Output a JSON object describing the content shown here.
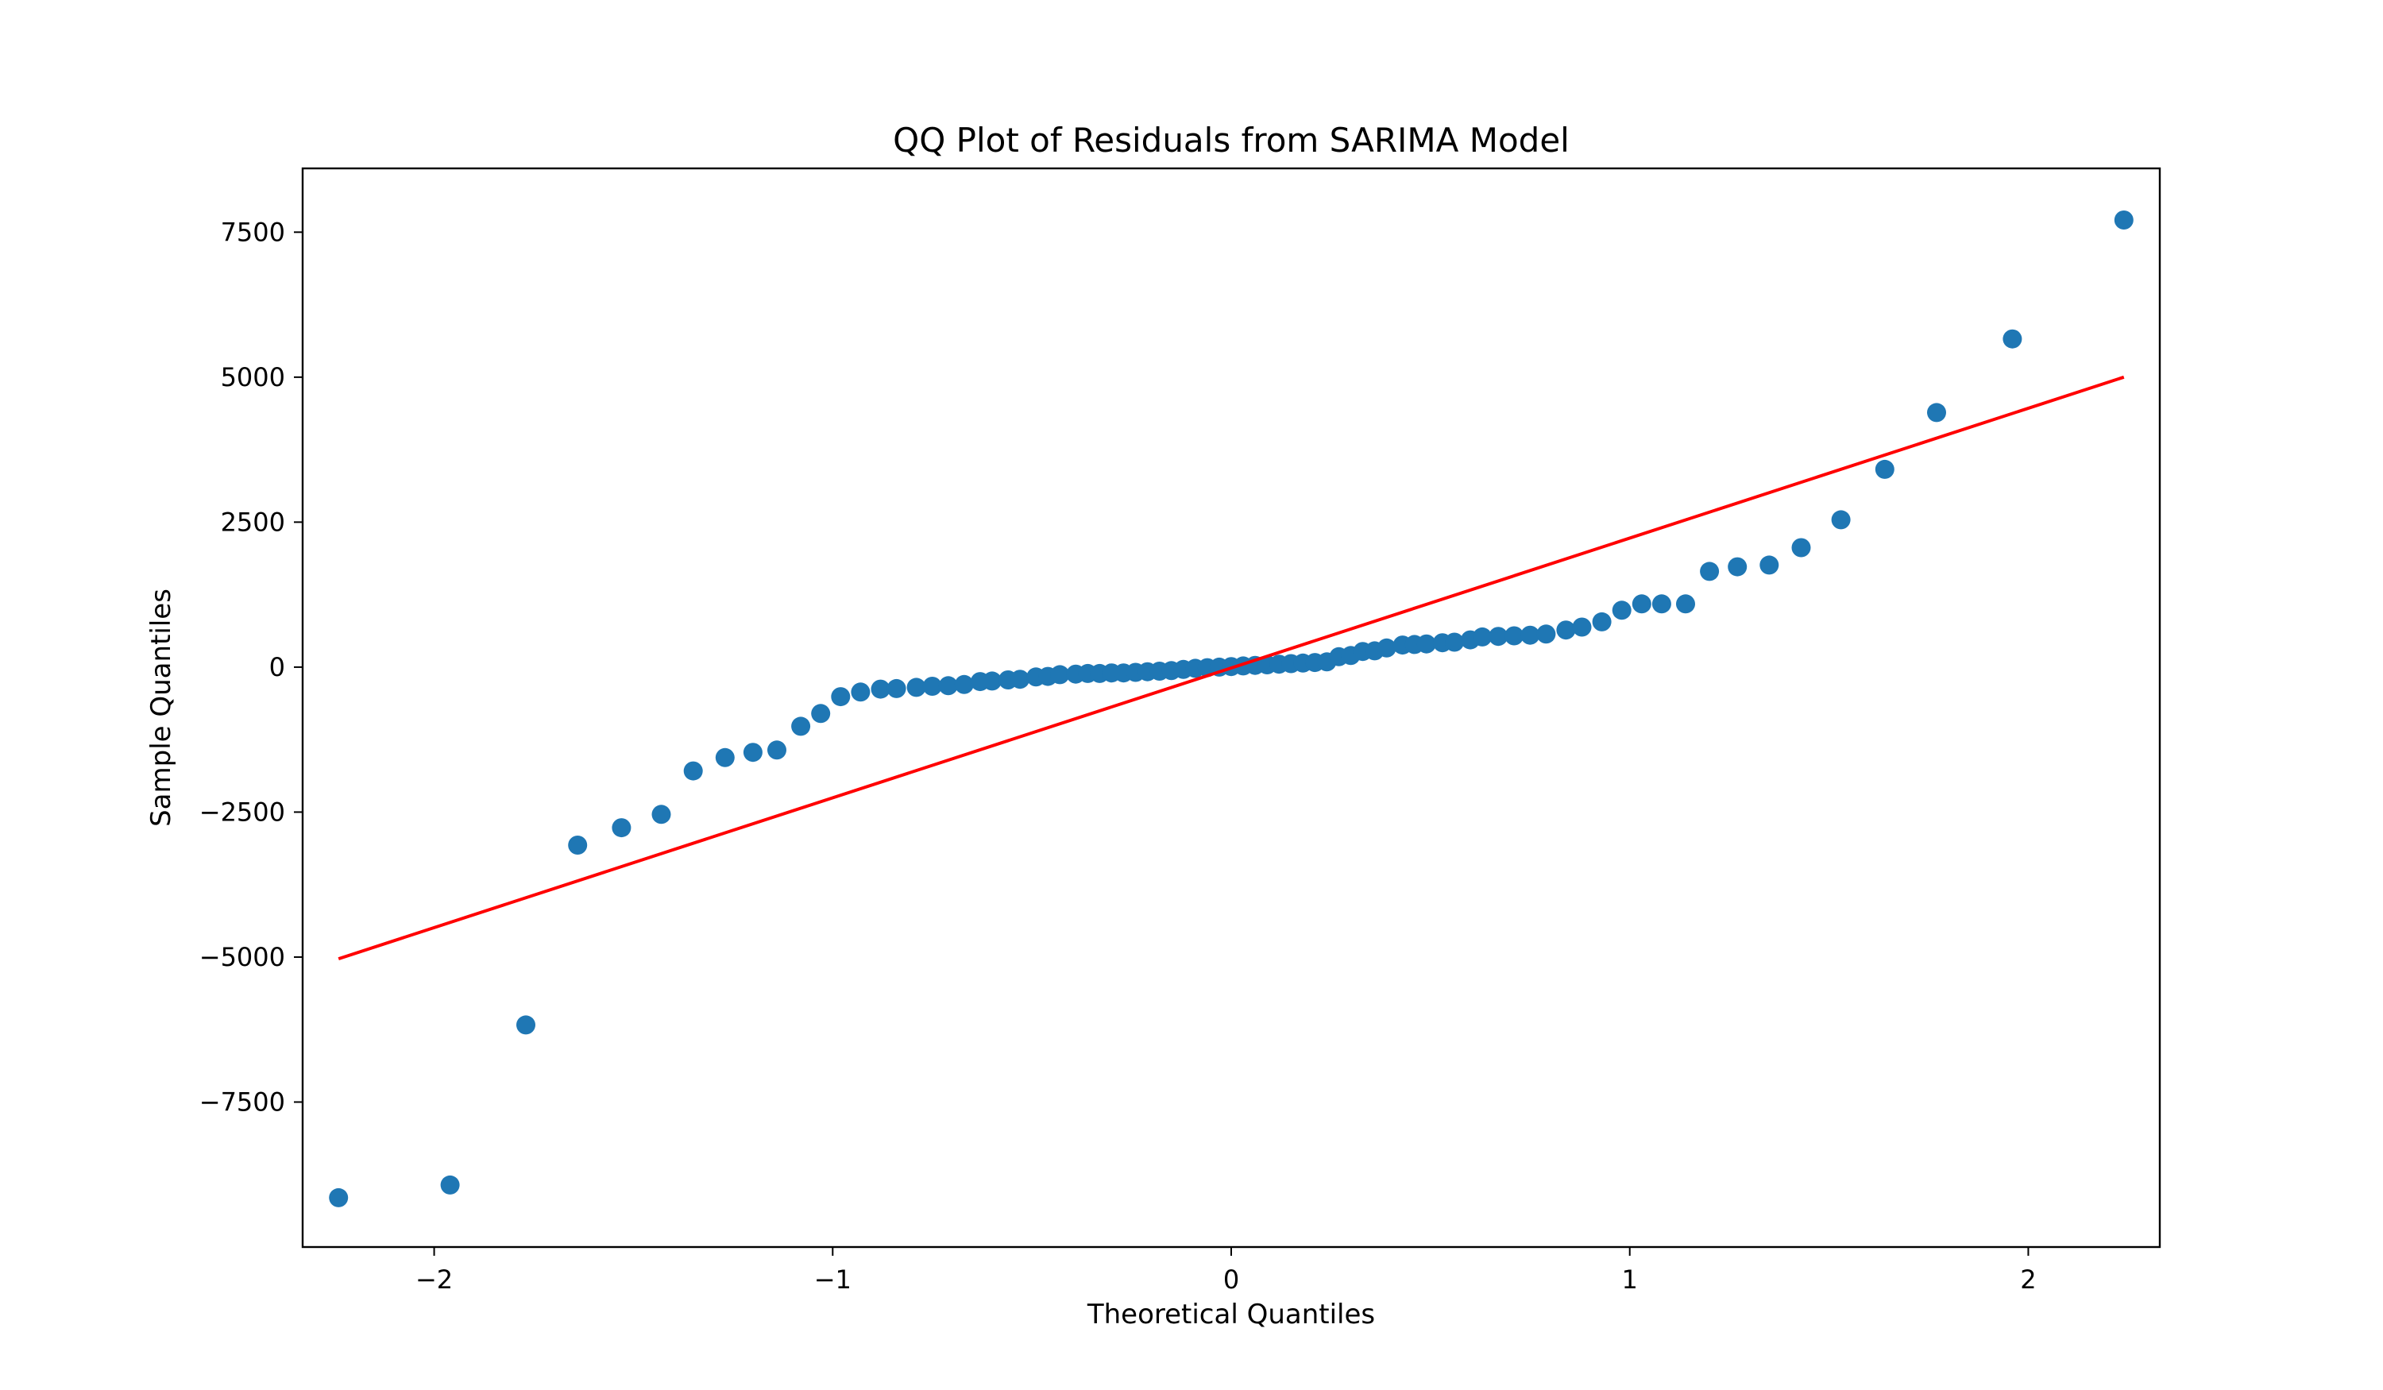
{
  "chart_data": {
    "type": "scatter",
    "title": "QQ Plot of Residuals from SARIMA Model",
    "xlabel": "Theoretical Quantiles",
    "ylabel": "Sample Quantiles",
    "xlim": [
      -2.33,
      2.33
    ],
    "ylim": [
      -10000,
      8600
    ],
    "xticks": [
      {
        "value": -2,
        "label": "−2"
      },
      {
        "value": -1,
        "label": "−1"
      },
      {
        "value": 0,
        "label": "0"
      },
      {
        "value": 1,
        "label": "1"
      },
      {
        "value": 2,
        "label": "2"
      }
    ],
    "yticks": [
      {
        "value": -7500,
        "label": "−7500"
      },
      {
        "value": -5000,
        "label": "−5000"
      },
      {
        "value": -2500,
        "label": "−2500"
      },
      {
        "value": 0,
        "label": "0"
      },
      {
        "value": 2500,
        "label": "2500"
      },
      {
        "value": 5000,
        "label": "5000"
      },
      {
        "value": 7500,
        "label": "7500"
      }
    ],
    "grid": false,
    "series": [
      {
        "kind": "points",
        "color": "#1f77b4",
        "x": [
          -2.24,
          -1.96,
          -1.77,
          -1.64,
          -1.53,
          -1.43,
          -1.35,
          -1.27,
          -1.2,
          -1.14,
          -1.08,
          -1.03,
          -0.98,
          -0.93,
          -0.88,
          -0.84,
          -0.79,
          -0.75,
          -0.71,
          -0.67,
          -0.63,
          -0.6,
          -0.56,
          -0.53,
          -0.49,
          -0.46,
          -0.43,
          -0.39,
          -0.36,
          -0.33,
          -0.3,
          -0.27,
          -0.24,
          -0.21,
          -0.18,
          -0.15,
          -0.12,
          -0.09,
          -0.06,
          -0.03,
          0.0,
          0.03,
          0.06,
          0.09,
          0.12,
          0.15,
          0.18,
          0.21,
          0.24,
          0.27,
          0.3,
          0.33,
          0.36,
          0.39,
          0.43,
          0.46,
          0.49,
          0.53,
          0.56,
          0.6,
          0.63,
          0.67,
          0.71,
          0.75,
          0.79,
          0.84,
          0.88,
          0.93,
          0.98,
          1.03,
          1.08,
          1.14,
          1.2,
          1.27,
          1.35,
          1.43,
          1.53,
          1.64,
          1.77,
          1.96,
          2.24
        ],
        "y": [
          -9150,
          -8930,
          -6170,
          -3070,
          -2770,
          -2540,
          -1790,
          -1560,
          -1470,
          -1430,
          -1020,
          -800,
          -510,
          -430,
          -380,
          -370,
          -350,
          -330,
          -320,
          -300,
          -250,
          -240,
          -220,
          -210,
          -170,
          -160,
          -130,
          -120,
          -110,
          -110,
          -100,
          -100,
          -90,
          -80,
          -70,
          -60,
          -40,
          -20,
          -10,
          0,
          10,
          20,
          30,
          40,
          50,
          60,
          70,
          80,
          90,
          180,
          200,
          270,
          280,
          330,
          380,
          390,
          400,
          420,
          430,
          470,
          520,
          530,
          540,
          550,
          570,
          640,
          690,
          780,
          980,
          1090,
          1090,
          1090,
          1650,
          1730,
          1760,
          2060,
          2540,
          3410,
          4390,
          5660,
          7710
        ]
      },
      {
        "kind": "line",
        "color": "#ff0000",
        "x": [
          -2.24,
          2.24
        ],
        "y": [
          -5030,
          5000
        ]
      }
    ]
  }
}
